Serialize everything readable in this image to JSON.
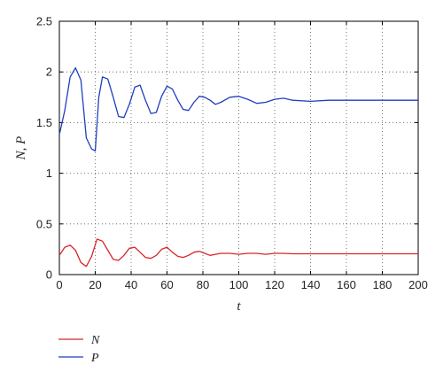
{
  "chart_data": {
    "type": "line",
    "xlabel": "t",
    "ylabel": "N, P",
    "xlim": [
      0,
      200
    ],
    "ylim": [
      0,
      2.5
    ],
    "x_ticks": [
      "0",
      "20",
      "40",
      "60",
      "80",
      "100",
      "120",
      "140",
      "160",
      "180",
      "200"
    ],
    "y_ticks": [
      "0",
      "0.5",
      "1",
      "1.5",
      "2",
      "2.5"
    ],
    "grid": true,
    "legend_position": "bottom-left, below plot",
    "series": [
      {
        "name": "N",
        "color": "#d62728",
        "x": [
          0,
          3,
          6,
          9,
          12,
          15,
          18,
          21,
          24,
          27,
          30,
          33,
          36,
          39,
          42,
          45,
          48,
          51,
          54,
          57,
          60,
          63,
          66,
          69,
          72,
          75,
          78,
          81,
          84,
          87,
          90,
          95,
          100,
          105,
          110,
          115,
          120,
          125,
          130,
          140,
          150,
          160,
          170,
          180,
          190,
          200
        ],
        "values": [
          0.19,
          0.27,
          0.29,
          0.24,
          0.12,
          0.08,
          0.18,
          0.35,
          0.33,
          0.24,
          0.15,
          0.14,
          0.19,
          0.26,
          0.27,
          0.22,
          0.17,
          0.16,
          0.19,
          0.25,
          0.27,
          0.22,
          0.18,
          0.17,
          0.19,
          0.22,
          0.23,
          0.21,
          0.19,
          0.2,
          0.21,
          0.21,
          0.2,
          0.21,
          0.21,
          0.2,
          0.21,
          0.21,
          0.205,
          0.205,
          0.205,
          0.205,
          0.205,
          0.205,
          0.205,
          0.205
        ]
      },
      {
        "name": "P",
        "color": "#1f3fbf",
        "x": [
          0,
          3,
          6,
          9,
          12,
          15,
          18,
          20,
          22,
          24,
          27,
          30,
          33,
          36,
          39,
          42,
          45,
          48,
          51,
          54,
          57,
          60,
          63,
          66,
          69,
          72,
          75,
          78,
          81,
          84,
          87,
          90,
          95,
          100,
          105,
          110,
          115,
          120,
          125,
          130,
          140,
          150,
          160,
          170,
          180,
          190,
          200
        ],
        "values": [
          1.38,
          1.62,
          1.95,
          2.04,
          1.92,
          1.35,
          1.24,
          1.22,
          1.75,
          1.95,
          1.93,
          1.75,
          1.56,
          1.55,
          1.68,
          1.85,
          1.87,
          1.72,
          1.59,
          1.6,
          1.76,
          1.86,
          1.83,
          1.72,
          1.63,
          1.62,
          1.7,
          1.76,
          1.75,
          1.72,
          1.68,
          1.7,
          1.75,
          1.76,
          1.73,
          1.69,
          1.7,
          1.73,
          1.74,
          1.72,
          1.71,
          1.72,
          1.72,
          1.72,
          1.72,
          1.72,
          1.72
        ]
      }
    ]
  }
}
